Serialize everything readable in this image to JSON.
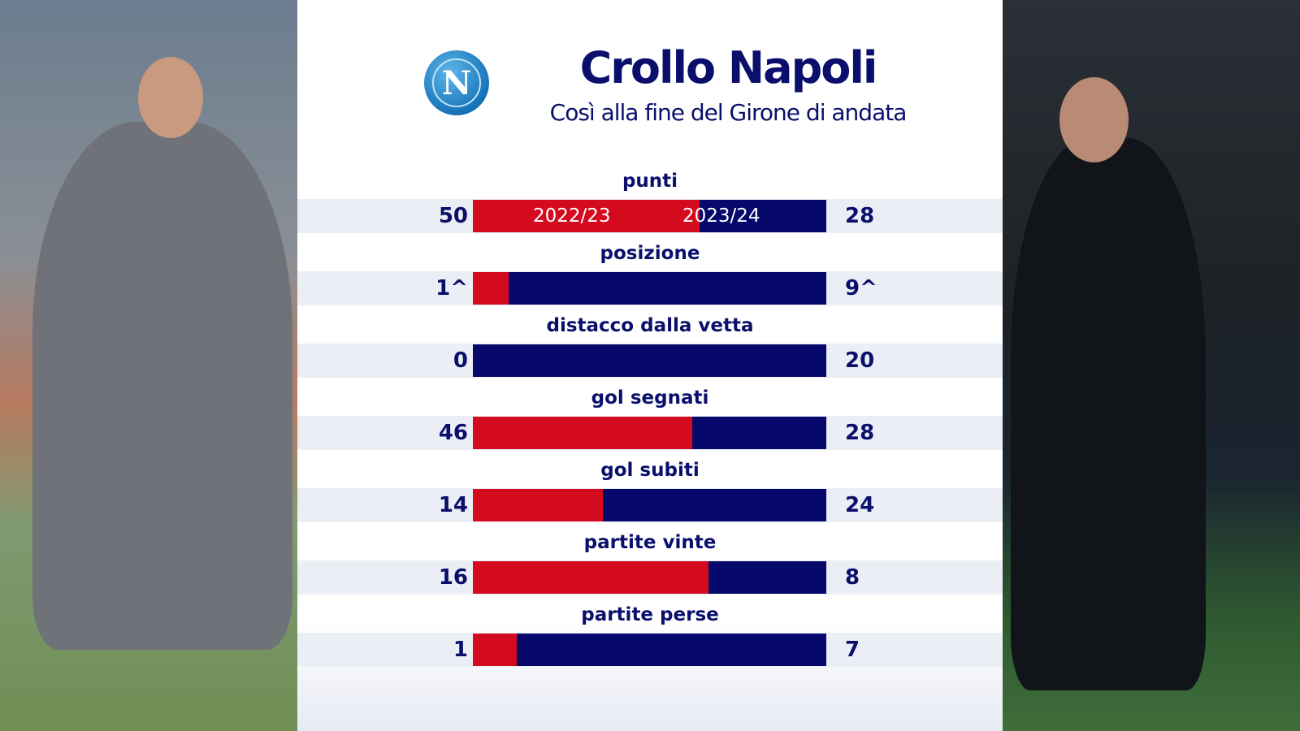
{
  "header": {
    "title": "Crollo Napoli",
    "subtitle": "Così alla fine del Girone di andata",
    "logo_text": "N"
  },
  "chart_data": {
    "type": "bar",
    "orientation": "horizontal-stacked-comparison",
    "series": [
      {
        "name": "2022/23",
        "color": "#d40a1e"
      },
      {
        "name": "2023/24",
        "color": "#06086b"
      }
    ],
    "categories": [
      "punti",
      "posizione",
      "distacco dalla vetta",
      "gol segnati",
      "gol subiti",
      "partite vinte",
      "partite perse"
    ],
    "rows": [
      {
        "label": "punti",
        "left": 50,
        "right": 28,
        "left_text": "50",
        "right_text": "28"
      },
      {
        "label": "posizione",
        "left": 1,
        "right": 9,
        "left_text": "1^",
        "right_text": "9^"
      },
      {
        "label": "distacco dalla vetta",
        "left": 0,
        "right": 20,
        "left_text": "0",
        "right_text": "20"
      },
      {
        "label": "gol segnati",
        "left": 46,
        "right": 28,
        "left_text": "46",
        "right_text": "28"
      },
      {
        "label": "gol subiti",
        "left": 14,
        "right": 24,
        "left_text": "14",
        "right_text": "24"
      },
      {
        "label": "partite vinte",
        "left": 16,
        "right": 8,
        "left_text": "16",
        "right_text": "8"
      },
      {
        "label": "partite perse",
        "left": 1,
        "right": 7,
        "left_text": "1",
        "right_text": "7"
      }
    ]
  }
}
